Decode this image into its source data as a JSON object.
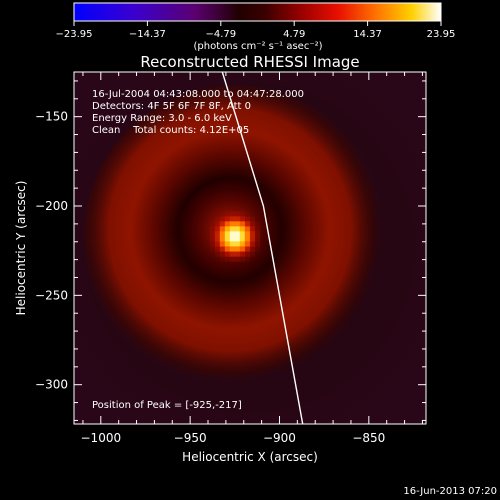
{
  "chart_data": {
    "type": "heatmap",
    "title": "Reconstructed RHESSI Image",
    "xlabel": "Heliocentric X (arcsec)",
    "ylabel": "Heliocentric Y (arcsec)",
    "xlim": [
      -1015,
      -818
    ],
    "ylim": [
      -322,
      -125
    ],
    "x_ticks": [
      -1000,
      -950,
      -900,
      -850
    ],
    "x_tick_labels": [
      "−1000",
      "−950",
      "−900",
      "−850"
    ],
    "y_ticks": [
      -150,
      -200,
      -250,
      -300
    ],
    "y_tick_labels": [
      "−150",
      "−200",
      "−250",
      "−300"
    ],
    "colorbar": {
      "min": -23.95,
      "max": 23.95,
      "tick_labels": [
        "−23.95",
        "−14.37",
        "−4.79",
        "4.79",
        "14.37",
        "23.95"
      ],
      "unit_label": "(photons cm⁻² s⁻¹ asec⁻²)"
    },
    "annotations": [
      "16-Jul-2004 04:43:08.000 to 04:47:28.000",
      "Detectors: 4F 5F 6F 7F 8F, Att 0",
      "Energy Range: 3.0 - 6.0 keV",
      "Clean    Total counts: 4.12E+05"
    ],
    "peak_label": "Position of Peak = [-925,-217]",
    "peak": [
      -925,
      -217
    ],
    "peak_value": 23.95,
    "ring": {
      "center": [
        -925,
        -217
      ],
      "radius": 65,
      "level": 6.5
    },
    "limb_line": [
      [
        -932,
        -125
      ],
      [
        -909,
        -200
      ],
      [
        -887,
        -322
      ]
    ],
    "grid": false,
    "footer": "16-Jun-2013 07:20"
  }
}
